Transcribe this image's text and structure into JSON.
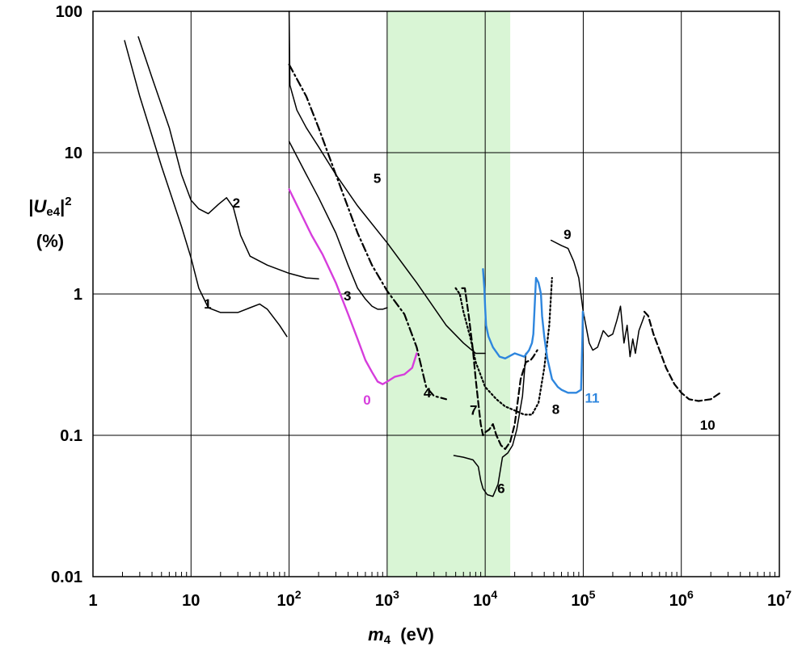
{
  "chart_data": {
    "type": "line",
    "xscale": "log",
    "yscale": "log",
    "xlim": [
      1,
      10000000
    ],
    "ylim": [
      0.01,
      100
    ],
    "x_ticks": [
      {
        "base": "1",
        "exp": ""
      },
      {
        "base": "10",
        "exp": ""
      },
      {
        "base": "10",
        "exp": "2"
      },
      {
        "base": "10",
        "exp": "3"
      },
      {
        "base": "10",
        "exp": "4"
      },
      {
        "base": "10",
        "exp": "5"
      },
      {
        "base": "10",
        "exp": "6"
      },
      {
        "base": "10",
        "exp": "7"
      }
    ],
    "y_ticks": [
      "0.01",
      "0.1",
      "1",
      "10",
      "100"
    ],
    "y_tick_values": [
      0.01,
      0.1,
      1,
      10,
      100
    ],
    "xlabel": {
      "symbol": "m",
      "subscript": "4",
      "unit": "(eV)"
    },
    "ylabel": {
      "prefix": "|",
      "symbol": "U",
      "subscript": "e4",
      "suffix": "|",
      "exponent": "2",
      "unit": "(%)"
    },
    "grid": true,
    "highlight_band": {
      "x": [
        1000,
        18000
      ],
      "color": "#d9f5d5"
    },
    "series": [
      {
        "name": "1",
        "color": "#000000",
        "dash": "solid",
        "x": [
          2.1,
          3,
          5,
          8,
          10,
          12,
          15,
          20,
          30,
          40,
          50,
          60,
          80,
          95
        ],
        "y": [
          62,
          25,
          8,
          3,
          1.8,
          1.1,
          0.8,
          0.74,
          0.74,
          0.8,
          0.85,
          0.78,
          0.6,
          0.5
        ],
        "label_pos": [
          13.5,
          0.79
        ]
      },
      {
        "name": "2",
        "color": "#000000",
        "dash": "solid",
        "x": [
          2.9,
          4,
          6,
          8,
          10,
          12,
          15,
          19,
          23,
          27,
          32,
          40,
          60,
          100,
          150,
          200
        ],
        "y": [
          66,
          34,
          15,
          7,
          4.6,
          4,
          3.7,
          4.3,
          4.8,
          4.1,
          2.6,
          1.85,
          1.6,
          1.4,
          1.3,
          1.28
        ],
        "label_pos": [
          26.5,
          4.1
        ]
      },
      {
        "name": "3",
        "color": "#000000",
        "dash": "solid",
        "x": [
          100,
          150,
          200,
          300,
          400,
          500,
          600,
          700,
          800,
          900,
          1000
        ],
        "y": [
          12,
          7,
          4.8,
          2.7,
          1.6,
          1.1,
          0.92,
          0.82,
          0.78,
          0.78,
          0.8
        ],
        "label_pos": [
          360,
          0.9
        ]
      },
      {
        "name": "4",
        "color": "#000000",
        "dash": "dashdot",
        "x": [
          100,
          150,
          200,
          300,
          500,
          700,
          1000,
          1500,
          2000,
          2500,
          3000,
          4000
        ],
        "y": [
          42,
          25,
          15,
          7,
          2.7,
          1.6,
          1.05,
          0.72,
          0.42,
          0.22,
          0.19,
          0.18
        ],
        "label_pos": [
          2350,
          0.185
        ]
      },
      {
        "name": "5",
        "color": "#000000",
        "dash": "solid",
        "x": [
          100,
          102,
          120,
          150,
          200,
          300,
          500,
          1000,
          2000,
          4000,
          6000,
          8000,
          10000
        ],
        "y": [
          100,
          30,
          20,
          15,
          11,
          7,
          4.2,
          2.3,
          1.2,
          0.6,
          0.45,
          0.38,
          0.38
        ],
        "label_pos": [
          725,
          6.1
        ]
      },
      {
        "name": "6",
        "color": "#000000",
        "dash": "solid",
        "x": [
          4800,
          6000,
          7500,
          8500,
          9000,
          9500,
          10500,
          12000,
          13500,
          15000,
          17000,
          19000,
          21000,
          24000,
          26000
        ],
        "y": [
          0.072,
          0.07,
          0.067,
          0.06,
          0.048,
          0.042,
          0.038,
          0.037,
          0.045,
          0.07,
          0.075,
          0.085,
          0.11,
          0.19,
          0.38
        ],
        "label_pos": [
          13300,
          0.039
        ]
      },
      {
        "name": "7",
        "color": "#000000",
        "dash": "dashed",
        "x": [
          5800,
          6200,
          6800,
          7500,
          8000,
          8500,
          9000,
          9500,
          10000,
          11000,
          12000,
          13000,
          14500,
          16000,
          18000,
          20000,
          23000,
          26000,
          29000,
          31000,
          34000
        ],
        "y": [
          1.1,
          1.1,
          0.7,
          0.4,
          0.25,
          0.17,
          0.12,
          0.1,
          0.105,
          0.11,
          0.12,
          0.1,
          0.085,
          0.08,
          0.09,
          0.12,
          0.25,
          0.33,
          0.34,
          0.36,
          0.4
        ],
        "label_pos": [
          6950,
          0.14
        ]
      },
      {
        "name": "8",
        "color": "#000000",
        "dash": "dotted",
        "x": [
          5000,
          5500,
          6000,
          7000,
          8000,
          10000,
          13000,
          16000,
          20000,
          25000,
          30000,
          35000,
          40000,
          45000,
          48000
        ],
        "y": [
          1.1,
          1.0,
          0.75,
          0.5,
          0.33,
          0.22,
          0.18,
          0.16,
          0.15,
          0.14,
          0.14,
          0.17,
          0.3,
          0.6,
          1.3
        ],
        "label_pos": [
          48000,
          0.142
        ]
      },
      {
        "name": "9",
        "color": "#000000",
        "dash": "solid",
        "x": [
          47000,
          60000,
          70000,
          80000,
          90000,
          100000,
          115000,
          125000,
          140000,
          160000,
          180000,
          200000,
          220000,
          240000,
          260000,
          280000,
          300000,
          320000,
          340000,
          370000,
          420000
        ],
        "y": [
          2.4,
          2.2,
          2.1,
          1.7,
          1.3,
          0.75,
          0.45,
          0.4,
          0.42,
          0.55,
          0.5,
          0.52,
          0.65,
          0.82,
          0.45,
          0.6,
          0.36,
          0.48,
          0.38,
          0.55,
          0.7
        ],
        "label_pos": [
          63000,
          2.45
        ]
      },
      {
        "name": "10",
        "color": "#000000",
        "dash": "dashed",
        "x": [
          420000,
          460000,
          520000,
          600000,
          700000,
          850000,
          1000000,
          1200000,
          1500000,
          2000000,
          2500000
        ],
        "y": [
          0.75,
          0.7,
          0.52,
          0.4,
          0.3,
          0.23,
          0.2,
          0.18,
          0.175,
          0.18,
          0.2
        ],
        "label_pos": [
          1550000,
          0.11
        ]
      },
      {
        "name": "11",
        "color": "#2e86de",
        "dash": "solid",
        "x": [
          9500,
          9800,
          10000,
          10200,
          10800,
          12000,
          14000,
          16000,
          20000,
          25000,
          28000,
          30000,
          31000,
          33000,
          35000,
          36000,
          37000,
          38000,
          40000,
          43000,
          48000,
          55000,
          60000,
          70000,
          85000,
          95000,
          98000,
          99000,
          100000
        ],
        "y": [
          1.5,
          1.1,
          0.8,
          0.6,
          0.5,
          0.42,
          0.36,
          0.35,
          0.38,
          0.36,
          0.4,
          0.45,
          0.52,
          1.3,
          1.2,
          1.1,
          1.0,
          0.7,
          0.5,
          0.35,
          0.25,
          0.22,
          0.21,
          0.2,
          0.2,
          0.21,
          0.5,
          0.75,
          0.7
        ],
        "label_pos": [
          104000,
          0.17
        ]
      },
      {
        "name": "0",
        "color": "#d63ddc",
        "dash": "solid",
        "x": [
          100,
          130,
          170,
          220,
          300,
          400,
          500,
          600,
          700,
          800,
          900,
          1000,
          1200,
          1500,
          1800,
          2000
        ],
        "y": [
          5.5,
          3.8,
          2.6,
          1.9,
          1.2,
          0.72,
          0.48,
          0.34,
          0.28,
          0.24,
          0.23,
          0.24,
          0.26,
          0.27,
          0.3,
          0.38
        ],
        "label_pos": [
          570,
          0.165
        ]
      }
    ]
  }
}
